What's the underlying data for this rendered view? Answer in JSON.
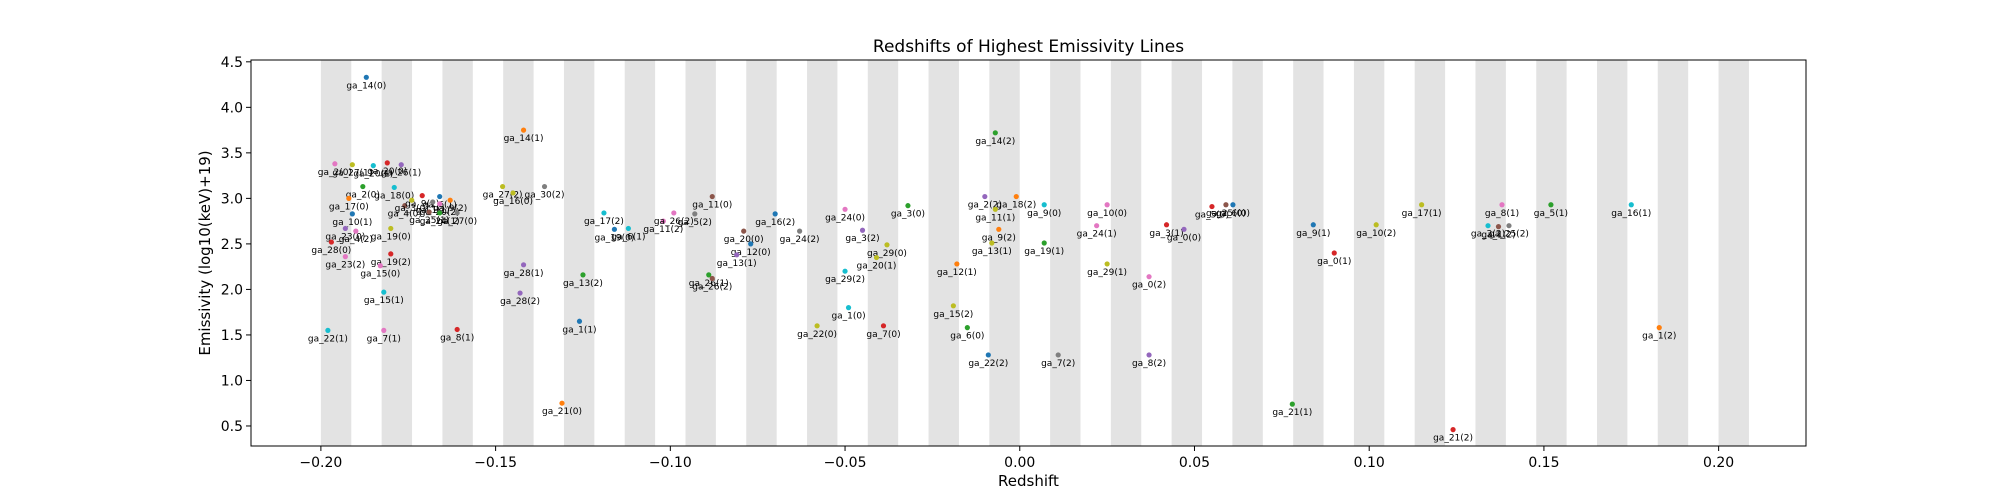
{
  "chart_data": {
    "type": "scatter",
    "title": "Redshifts of Highest Emissivity Lines",
    "xlabel": "Redshift",
    "ylabel": "Emissivity (log10(keV)+19)",
    "xlim": [
      -0.22,
      0.225
    ],
    "ylim": [
      0.28,
      4.52
    ],
    "xticks": [
      -0.2,
      -0.15,
      -0.1,
      -0.05,
      0.0,
      0.05,
      0.1,
      0.15,
      0.2
    ],
    "xtick_labels": [
      "−0.20",
      "−0.15",
      "−0.10",
      "−0.05",
      "0.00",
      "0.05",
      "0.10",
      "0.15",
      "0.20"
    ],
    "yticks": [
      0.5,
      1.0,
      1.5,
      2.0,
      2.5,
      3.0,
      3.5,
      4.0,
      4.5
    ],
    "ytick_labels": [
      "0.5",
      "1.0",
      "1.5",
      "2.0",
      "2.5",
      "3.0",
      "3.5",
      "4.0",
      "4.5"
    ],
    "bands_start": -0.2,
    "bands_width": 0.0087,
    "bands_period": 0.01739,
    "bands_count": 24,
    "band_color": "#e3e3e3",
    "grid": false,
    "legend": "none",
    "points": [
      {
        "label": "ga_14(0)",
        "x": -0.187,
        "y": 4.33,
        "color": "#1f77b4"
      },
      {
        "label": "ga_2(0)",
        "x": -0.196,
        "y": 3.38,
        "color": "#e377c2"
      },
      {
        "label": "ga_27(1)",
        "x": -0.191,
        "y": 3.37,
        "color": "#bcbd22"
      },
      {
        "label": "ga_20(1)",
        "x": -0.185,
        "y": 3.36,
        "color": "#17becf"
      },
      {
        "label": "ga_20(0)",
        "x": -0.181,
        "y": 3.39,
        "color": "#d62728"
      },
      {
        "label": "ga_26(1)",
        "x": -0.177,
        "y": 3.37,
        "color": "#9467bd"
      },
      {
        "label": "ga_2(0)",
        "x": -0.188,
        "y": 3.13,
        "color": "#2ca02c"
      },
      {
        "label": "ga_18(0)",
        "x": -0.179,
        "y": 3.12,
        "color": "#17becf"
      },
      {
        "label": "ga_17(0)",
        "x": -0.192,
        "y": 3.0,
        "color": "#ff7f0e"
      },
      {
        "label": "ga_10(1)",
        "x": -0.191,
        "y": 2.83,
        "color": "#1f77b4"
      },
      {
        "label": "ga_6(1)",
        "x": -0.166,
        "y": 3.02,
        "color": "#1f77b4"
      },
      {
        "label": "ga_4(0)",
        "x": -0.176,
        "y": 2.92,
        "color": "#8c564b"
      },
      {
        "label": "ga_9(1)",
        "x": -0.171,
        "y": 3.03,
        "color": "#d62728"
      },
      {
        "label": "ga_1(1)",
        "x": -0.168,
        "y": 2.96,
        "color": "#7f7f7f"
      },
      {
        "label": "ga_3(0)",
        "x": -0.174,
        "y": 2.98,
        "color": "#bcbd22"
      },
      {
        "label": "ga_20(2)",
        "x": -0.166,
        "y": 2.94,
        "color": "#e377c2"
      },
      {
        "label": "ga_9(2)",
        "x": -0.163,
        "y": 2.98,
        "color": "#ff7f0e"
      },
      {
        "label": "ga_27(0)",
        "x": -0.161,
        "y": 2.84,
        "color": "#7f7f7f"
      },
      {
        "label": "ga_24(1)",
        "x": -0.166,
        "y": 2.84,
        "color": "#2ca02c"
      },
      {
        "label": "ga_25(1)",
        "x": -0.169,
        "y": 2.85,
        "color": "#8c564b"
      },
      {
        "label": "ga_23(0)",
        "x": -0.193,
        "y": 2.67,
        "color": "#9467bd"
      },
      {
        "label": "ga_4(2)",
        "x": -0.19,
        "y": 2.64,
        "color": "#e377c2"
      },
      {
        "label": "ga_19(0)",
        "x": -0.18,
        "y": 2.67,
        "color": "#bcbd22"
      },
      {
        "label": "ga_28(0)",
        "x": -0.197,
        "y": 2.52,
        "color": "#d62728"
      },
      {
        "label": "ga_23(2)",
        "x": -0.193,
        "y": 2.36,
        "color": "#e377c2"
      },
      {
        "label": "ga_19(2)",
        "x": -0.18,
        "y": 2.39,
        "color": "#d62728"
      },
      {
        "label": "ga_15(0)",
        "x": -0.183,
        "y": 2.26,
        "color": "#e377c2"
      },
      {
        "label": "ga_15(1)",
        "x": -0.182,
        "y": 1.97,
        "color": "#17becf"
      },
      {
        "label": "ga_22(1)",
        "x": -0.198,
        "y": 1.55,
        "color": "#17becf"
      },
      {
        "label": "ga_7(1)",
        "x": -0.182,
        "y": 1.55,
        "color": "#e377c2"
      },
      {
        "label": "ga_8(1)",
        "x": -0.161,
        "y": 1.56,
        "color": "#d62728"
      },
      {
        "label": "ga_14(1)",
        "x": -0.142,
        "y": 3.75,
        "color": "#ff7f0e"
      },
      {
        "label": "ga_27(2)",
        "x": -0.148,
        "y": 3.13,
        "color": "#bcbd22"
      },
      {
        "label": "ga_30(2)",
        "x": -0.136,
        "y": 3.13,
        "color": "#7f7f7f"
      },
      {
        "label": "ga_16(0)",
        "x": -0.145,
        "y": 3.06,
        "color": "#bcbd22"
      },
      {
        "label": "ga_28(1)",
        "x": -0.142,
        "y": 2.27,
        "color": "#9467bd"
      },
      {
        "label": "ga_28(2)",
        "x": -0.143,
        "y": 1.96,
        "color": "#9467bd"
      },
      {
        "label": "ga_21(0)",
        "x": -0.131,
        "y": 0.75,
        "color": "#ff7f0e"
      },
      {
        "label": "ga_13(2)",
        "x": -0.125,
        "y": 2.16,
        "color": "#2ca02c"
      },
      {
        "label": "ga_1(1)",
        "x": -0.126,
        "y": 1.65,
        "color": "#1f77b4"
      },
      {
        "label": "ga_17(2)",
        "x": -0.119,
        "y": 2.84,
        "color": "#17becf"
      },
      {
        "label": "ga_19(0)",
        "x": -0.116,
        "y": 2.66,
        "color": "#1f77b4"
      },
      {
        "label": "ga_6(1)",
        "x": -0.112,
        "y": 2.67,
        "color": "#17becf"
      },
      {
        "label": "ga_11(2)",
        "x": -0.102,
        "y": 2.75,
        "color": "#e377c2"
      },
      {
        "label": "ga_26(2)",
        "x": -0.099,
        "y": 2.84,
        "color": "#e377c2"
      },
      {
        "label": "ga_5(2)",
        "x": -0.093,
        "y": 2.83,
        "color": "#7f7f7f"
      },
      {
        "label": "ga_11(0)",
        "x": -0.088,
        "y": 3.02,
        "color": "#8c564b"
      },
      {
        "label": "ga_20(0)",
        "x": -0.079,
        "y": 2.64,
        "color": "#8c564b"
      },
      {
        "label": "ga_12(0)",
        "x": -0.077,
        "y": 2.5,
        "color": "#1f77b4"
      },
      {
        "label": "ga_13(1)",
        "x": -0.081,
        "y": 2.38,
        "color": "#9467bd"
      },
      {
        "label": "ga_26(1)",
        "x": -0.089,
        "y": 2.16,
        "color": "#2ca02c"
      },
      {
        "label": "ga_26(2)",
        "x": -0.088,
        "y": 2.12,
        "color": "#8c564b"
      },
      {
        "label": "ga_16(2)",
        "x": -0.07,
        "y": 2.83,
        "color": "#1f77b4"
      },
      {
        "label": "ga_24(2)",
        "x": -0.063,
        "y": 2.64,
        "color": "#7f7f7f"
      },
      {
        "label": "ga_22(0)",
        "x": -0.058,
        "y": 1.6,
        "color": "#bcbd22"
      },
      {
        "label": "ga_24(0)",
        "x": -0.05,
        "y": 2.88,
        "color": "#e377c2"
      },
      {
        "label": "ga_3(2)",
        "x": -0.045,
        "y": 2.65,
        "color": "#9467bd"
      },
      {
        "label": "ga_29(2)",
        "x": -0.05,
        "y": 2.2,
        "color": "#17becf"
      },
      {
        "label": "ga_1(0)",
        "x": -0.049,
        "y": 1.8,
        "color": "#17becf"
      },
      {
        "label": "ga_29(0)",
        "x": -0.038,
        "y": 2.49,
        "color": "#bcbd22"
      },
      {
        "label": "ga_20(1)",
        "x": -0.041,
        "y": 2.35,
        "color": "#bcbd22"
      },
      {
        "label": "ga_7(0)",
        "x": -0.039,
        "y": 1.6,
        "color": "#d62728"
      },
      {
        "label": "ga_3(0)",
        "x": -0.032,
        "y": 2.92,
        "color": "#2ca02c"
      },
      {
        "label": "ga_12(1)",
        "x": -0.018,
        "y": 2.28,
        "color": "#ff7f0e"
      },
      {
        "label": "ga_15(2)",
        "x": -0.019,
        "y": 1.82,
        "color": "#bcbd22"
      },
      {
        "label": "ga_6(0)",
        "x": -0.015,
        "y": 1.58,
        "color": "#2ca02c"
      },
      {
        "label": "ga_22(2)",
        "x": -0.009,
        "y": 1.28,
        "color": "#1f77b4"
      },
      {
        "label": "ga_14(2)",
        "x": -0.007,
        "y": 3.72,
        "color": "#2ca02c"
      },
      {
        "label": "ga_2(2)",
        "x": -0.01,
        "y": 3.02,
        "color": "#9467bd"
      },
      {
        "label": "ga_18(2)",
        "x": -0.001,
        "y": 3.02,
        "color": "#ff7f0e"
      },
      {
        "label": "ga_9(0)",
        "x": 0.007,
        "y": 2.93,
        "color": "#17becf"
      },
      {
        "label": "ga_11(1)",
        "x": -0.007,
        "y": 2.88,
        "color": "#bcbd22"
      },
      {
        "label": "ga_9(2)",
        "x": -0.006,
        "y": 2.66,
        "color": "#ff7f0e"
      },
      {
        "label": "ga_13(1)",
        "x": -0.008,
        "y": 2.51,
        "color": "#bcbd22"
      },
      {
        "label": "ga_19(1)",
        "x": 0.007,
        "y": 2.51,
        "color": "#2ca02c"
      },
      {
        "label": "ga_7(2)",
        "x": 0.011,
        "y": 1.28,
        "color": "#7f7f7f"
      },
      {
        "label": "ga_10(0)",
        "x": 0.025,
        "y": 2.93,
        "color": "#e377c2"
      },
      {
        "label": "ga_24(1)",
        "x": 0.022,
        "y": 2.7,
        "color": "#e377c2"
      },
      {
        "label": "ga_29(1)",
        "x": 0.025,
        "y": 2.28,
        "color": "#bcbd22"
      },
      {
        "label": "ga_0(2)",
        "x": 0.037,
        "y": 2.14,
        "color": "#e377c2"
      },
      {
        "label": "ga_8(2)",
        "x": 0.037,
        "y": 1.28,
        "color": "#9467bd"
      },
      {
        "label": "ga_3(1)",
        "x": 0.042,
        "y": 2.71,
        "color": "#d62728"
      },
      {
        "label": "ga_0(0)",
        "x": 0.047,
        "y": 2.66,
        "color": "#9467bd"
      },
      {
        "label": "ga_5(0)",
        "x": 0.055,
        "y": 2.91,
        "color": "#d62728"
      },
      {
        "label": "ga_25(0)",
        "x": 0.059,
        "y": 2.93,
        "color": "#8c564b"
      },
      {
        "label": "ga_6(0)",
        "x": 0.061,
        "y": 2.93,
        "color": "#1f77b4"
      },
      {
        "label": "ga_9(1)",
        "x": 0.084,
        "y": 2.71,
        "color": "#1f77b4"
      },
      {
        "label": "ga_0(1)",
        "x": 0.09,
        "y": 2.4,
        "color": "#d62728"
      },
      {
        "label": "ga_21(1)",
        "x": 0.078,
        "y": 0.74,
        "color": "#2ca02c"
      },
      {
        "label": "ga_10(2)",
        "x": 0.102,
        "y": 2.71,
        "color": "#bcbd22"
      },
      {
        "label": "ga_17(1)",
        "x": 0.115,
        "y": 2.93,
        "color": "#bcbd22"
      },
      {
        "label": "ga_21(2)",
        "x": 0.124,
        "y": 0.46,
        "color": "#d62728"
      },
      {
        "label": "ga_8(1)",
        "x": 0.138,
        "y": 2.93,
        "color": "#e377c2"
      },
      {
        "label": "ga_2(2)",
        "x": 0.134,
        "y": 2.7,
        "color": "#17becf"
      },
      {
        "label": "ga_1(2)",
        "x": 0.137,
        "y": 2.69,
        "color": "#8c564b"
      },
      {
        "label": "ga_25(2)",
        "x": 0.14,
        "y": 2.7,
        "color": "#7f7f7f"
      },
      {
        "label": "ga_5(1)",
        "x": 0.152,
        "y": 2.93,
        "color": "#2ca02c"
      },
      {
        "label": "ga_16(1)",
        "x": 0.175,
        "y": 2.93,
        "color": "#17becf"
      },
      {
        "label": "ga_1(2)",
        "x": 0.183,
        "y": 1.58,
        "color": "#ff7f0e"
      }
    ]
  }
}
